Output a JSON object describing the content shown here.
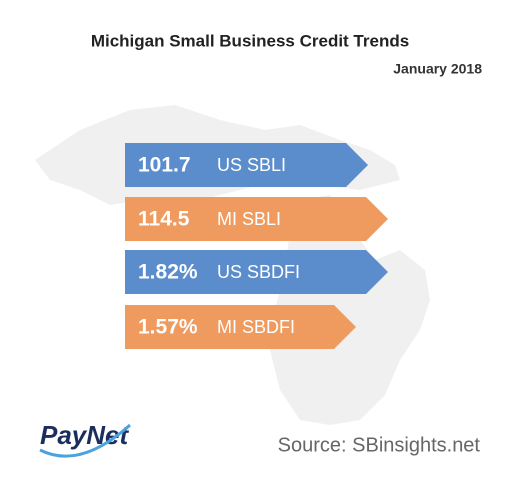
{
  "header": {
    "title": "Michigan Small Business Credit Trends",
    "subtitle": "January 2018"
  },
  "indicators": [
    {
      "value": "101.7",
      "label": "US SBLI"
    },
    {
      "value": "114.5",
      "label": "MI SBLI"
    },
    {
      "value": "1.82%",
      "label": "US SBDFI"
    },
    {
      "value": "1.57%",
      "label": "MI SBDFI"
    }
  ],
  "logo": "PayNet",
  "source": "Source: SBinsights.net"
}
